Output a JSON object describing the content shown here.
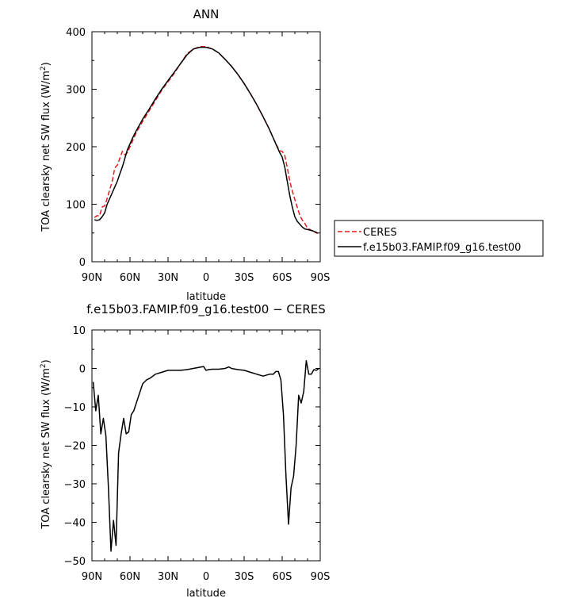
{
  "chart_data": [
    {
      "type": "line",
      "title": "ANN",
      "xlabel": "latitude",
      "ylabel": "TOA clearsky net SW flux (W/m²)",
      "ylabel_parts": {
        "main": "TOA clearsky net SW flux (W/m",
        "sup": "2",
        "tail": ")"
      },
      "xlim": [
        90,
        -90
      ],
      "ylim": [
        0,
        400
      ],
      "xticks": [
        {
          "value": 90,
          "label": "90N"
        },
        {
          "value": 60,
          "label": "60N"
        },
        {
          "value": 30,
          "label": "30N"
        },
        {
          "value": 0,
          "label": "0"
        },
        {
          "value": -30,
          "label": "30S"
        },
        {
          "value": -60,
          "label": "60S"
        },
        {
          "value": -90,
          "label": "90S"
        }
      ],
      "yticks": [
        {
          "value": 0,
          "label": "0"
        },
        {
          "value": 100,
          "label": "100"
        },
        {
          "value": 200,
          "label": "200"
        },
        {
          "value": 300,
          "label": "300"
        },
        {
          "value": 400,
          "label": "400"
        }
      ],
      "grid": false,
      "legend": "right",
      "series": [
        {
          "name": "CERES",
          "color": "#e41a1c",
          "dash": true,
          "x": [
            88,
            86,
            84,
            82,
            80,
            78,
            76,
            74,
            72,
            70,
            68,
            66,
            64,
            62,
            60,
            58,
            55,
            50,
            45,
            40,
            35,
            30,
            25,
            20,
            15,
            10,
            5,
            0,
            -5,
            -10,
            -15,
            -20,
            -25,
            -30,
            -35,
            -40,
            -45,
            -50,
            -55,
            -58,
            -60,
            -62,
            -64,
            -66,
            -68,
            -70,
            -72,
            -74,
            -76,
            -78,
            -80,
            -82,
            -84,
            -86,
            -88
          ],
          "values": [
            77,
            80,
            80,
            95,
            97,
            110,
            125,
            140,
            163,
            168,
            180,
            192,
            186,
            190,
            200,
            210,
            225,
            244,
            262,
            280,
            298,
            313,
            328,
            345,
            362,
            370,
            374,
            374,
            370,
            363,
            352,
            340,
            326,
            310,
            292,
            273,
            252,
            230,
            205,
            193,
            192,
            185,
            164,
            140,
            123,
            108,
            94,
            80,
            72,
            66,
            58,
            56,
            53,
            51,
            49
          ]
        },
        {
          "name": "f.e15b03.FAMIP.f09_g16.test00",
          "color": "#000000",
          "dash": false,
          "x": [
            88,
            86,
            84,
            82,
            80,
            78,
            76,
            74,
            72,
            70,
            68,
            66,
            64,
            62,
            60,
            58,
            55,
            50,
            45,
            40,
            35,
            30,
            25,
            20,
            15,
            10,
            5,
            0,
            -5,
            -10,
            -15,
            -20,
            -25,
            -30,
            -35,
            -40,
            -45,
            -50,
            -55,
            -58,
            -60,
            -62,
            -64,
            -66,
            -68,
            -70,
            -72,
            -74,
            -76,
            -78,
            -80,
            -82,
            -84,
            -86,
            -88
          ],
          "values": [
            73,
            72,
            73,
            78,
            85,
            100,
            110,
            120,
            130,
            140,
            153,
            165,
            180,
            195,
            205,
            215,
            228,
            248,
            265,
            283,
            300,
            315,
            330,
            345,
            360,
            370,
            373,
            373,
            370,
            363,
            352,
            340,
            326,
            310,
            292,
            273,
            252,
            230,
            205,
            190,
            182,
            165,
            140,
            115,
            95,
            78,
            70,
            65,
            60,
            57,
            56,
            55,
            54,
            52,
            50
          ]
        }
      ]
    },
    {
      "type": "line",
      "title": "f.e15b03.FAMIP.f09_g16.test00 − CERES",
      "xlabel": "latitude",
      "ylabel": "TOA clearsky net SW flux (W/m²)",
      "ylabel_parts": {
        "main": "TOA clearsky net SW flux (W/m",
        "sup": "2",
        "tail": ")"
      },
      "xlim": [
        90,
        -90
      ],
      "ylim": [
        -50,
        10
      ],
      "xticks": [
        {
          "value": 90,
          "label": "90N"
        },
        {
          "value": 60,
          "label": "60N"
        },
        {
          "value": 30,
          "label": "30N"
        },
        {
          "value": 0,
          "label": "0"
        },
        {
          "value": -30,
          "label": "30S"
        },
        {
          "value": -60,
          "label": "60S"
        },
        {
          "value": -90,
          "label": "90S"
        }
      ],
      "yticks": [
        {
          "value": 10,
          "label": "10"
        },
        {
          "value": 0,
          "label": "0"
        },
        {
          "value": -10,
          "label": "−10"
        },
        {
          "value": -20,
          "label": "−20"
        },
        {
          "value": -30,
          "label": "−30"
        },
        {
          "value": -40,
          "label": "−40"
        },
        {
          "value": -50,
          "label": "−50"
        }
      ],
      "grid": false,
      "series": [
        {
          "name": "",
          "color": "#000000",
          "dash": false,
          "x": [
            89,
            87,
            85,
            83,
            81,
            79,
            77,
            75,
            73,
            71,
            69,
            67,
            65,
            63,
            61,
            59,
            57,
            55,
            53,
            50,
            47,
            44,
            40,
            35,
            30,
            25,
            20,
            15,
            10,
            5,
            2,
            0,
            -2,
            -5,
            -10,
            -15,
            -18,
            -20,
            -25,
            -30,
            -35,
            -40,
            -45,
            -50,
            -53,
            -55,
            -57,
            -59,
            -61,
            -63,
            -65,
            -67,
            -69,
            -71,
            -73,
            -75,
            -77,
            -79,
            -81,
            -83,
            -85,
            -87,
            -89
          ],
          "values": [
            -3.5,
            -11,
            -7,
            -17,
            -13,
            -17.5,
            -31,
            -47.5,
            -39.5,
            -46,
            -22,
            -17,
            -13,
            -17,
            -16.5,
            -12,
            -11,
            -9,
            -7,
            -4,
            -3,
            -2.5,
            -1.5,
            -1,
            -0.5,
            -0.5,
            -0.5,
            -0.3,
            0,
            0.3,
            0.5,
            -0.5,
            -0.3,
            -0.2,
            -0.2,
            0,
            0.4,
            0,
            -0.3,
            -0.5,
            -1,
            -1.5,
            -2,
            -1.5,
            -1.5,
            -0.8,
            -0.8,
            -3,
            -12,
            -28,
            -40.5,
            -31,
            -28,
            -20,
            -7,
            -9,
            -6,
            2,
            -1.5,
            -1.5,
            -0.3,
            -0.5,
            0
          ]
        }
      ]
    }
  ]
}
